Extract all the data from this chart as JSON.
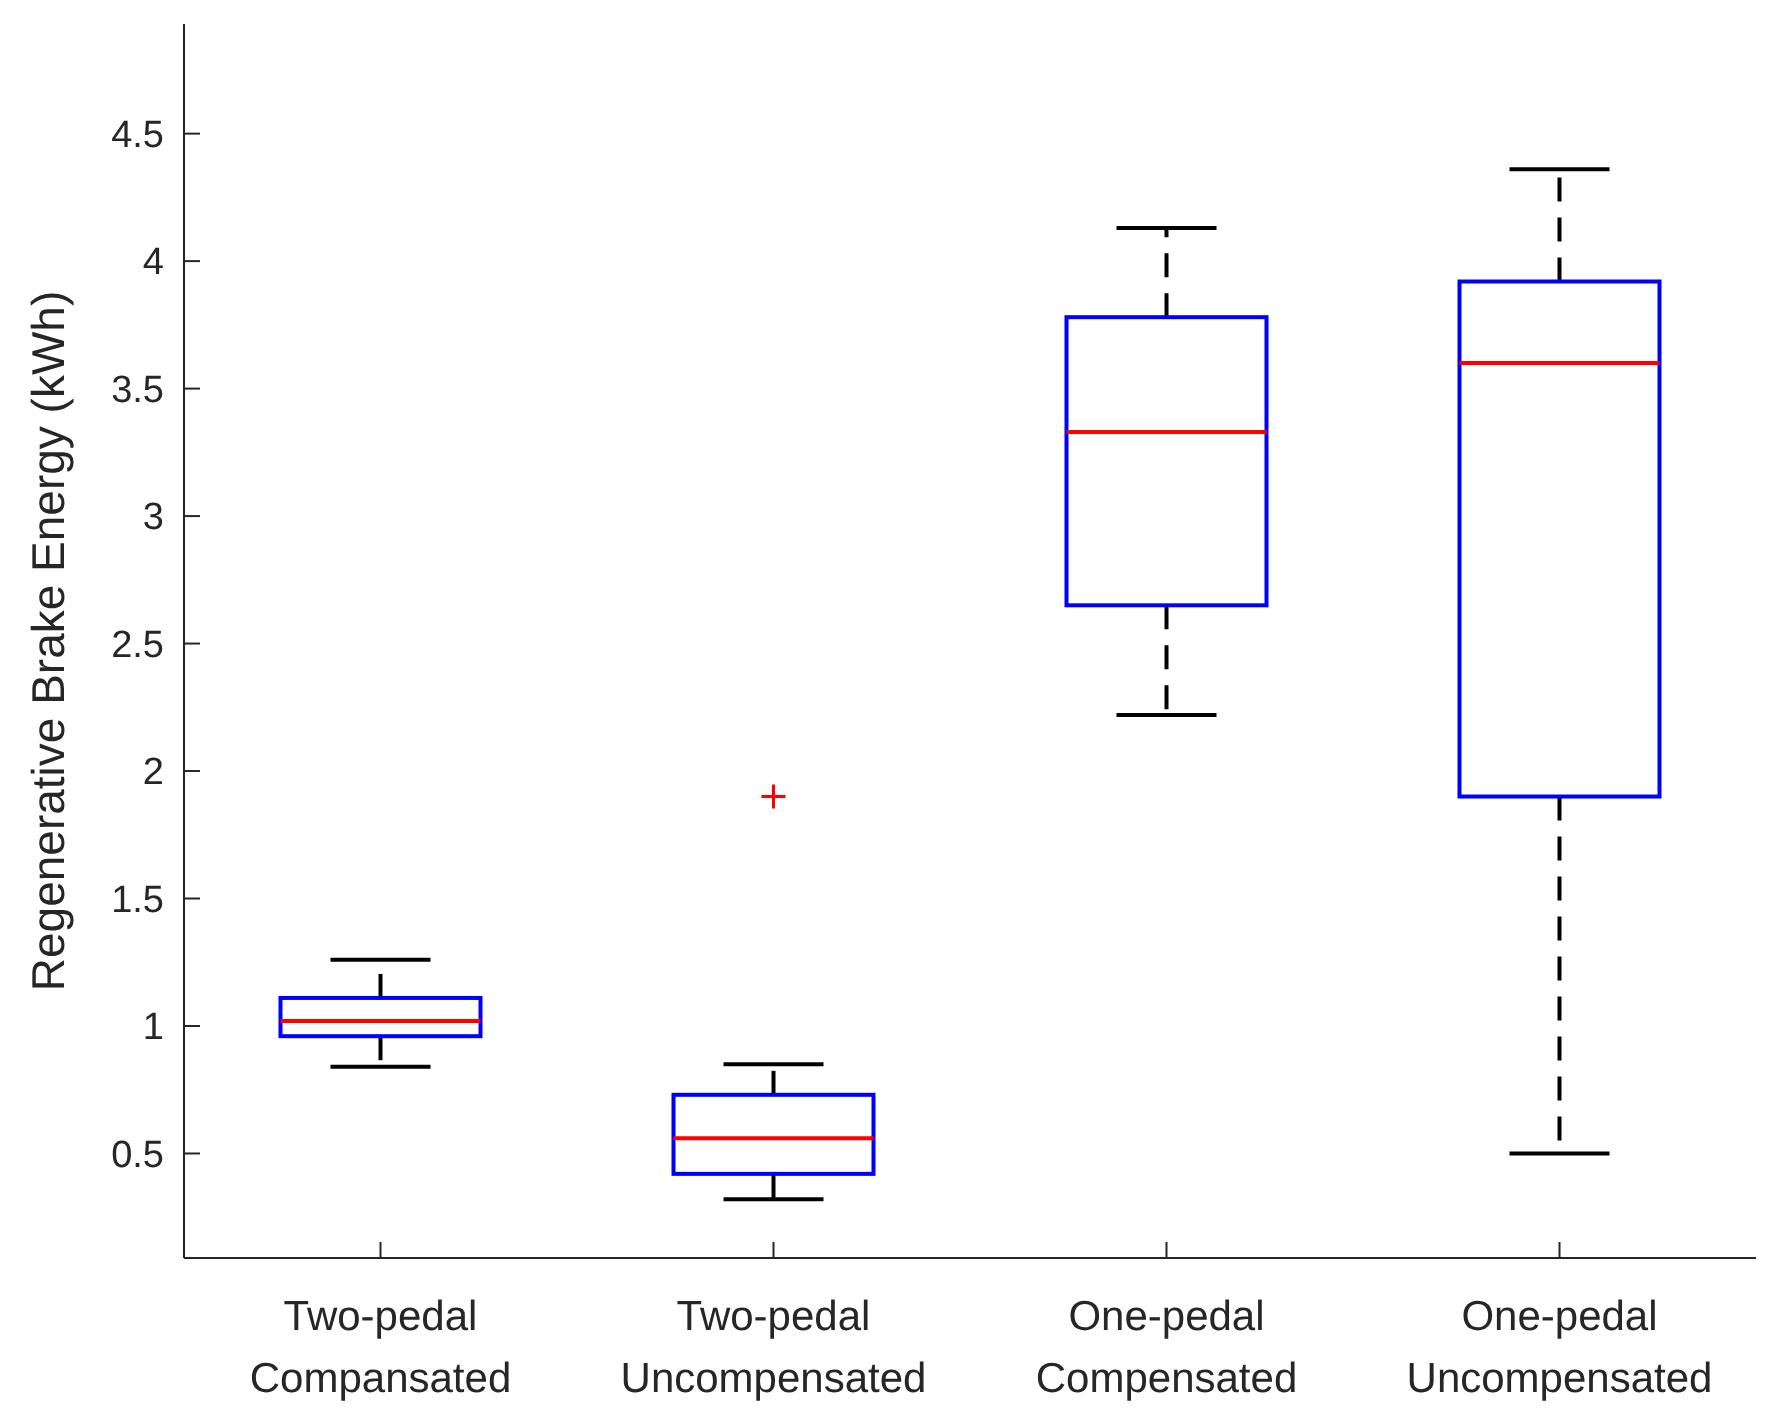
{
  "chart_data": {
    "type": "box",
    "ylabel": "Regenerative Brake Energy (kWh)",
    "categories": [
      "Two-pedal\nCompansated",
      "Two-pedal\nUncompensated",
      "One-pedal\nCompensated",
      "One-pedal\nUncompensated"
    ],
    "color": "#0000ff",
    "boxes": [
      {
        "low": 0.84,
        "q1": 0.96,
        "median": 1.02,
        "q3": 1.11,
        "high": 1.26
      },
      {
        "low": 0.32,
        "q1": 0.42,
        "median": 0.56,
        "q3": 0.73,
        "high": 0.85,
        "outliers": [
          1.9
        ]
      },
      {
        "low": 2.22,
        "q1": 2.65,
        "median": 3.33,
        "q3": 3.78,
        "high": 4.13
      },
      {
        "low": 0.5,
        "q1": 1.9,
        "median": 3.6,
        "q3": 3.92,
        "high": 4.36
      }
    ],
    "ylim": [
      0.09,
      4.93
    ],
    "yticks": [
      0.5,
      1,
      1.5,
      2,
      2.5,
      3,
      3.5,
      4,
      4.5
    ],
    "grid": false
  }
}
